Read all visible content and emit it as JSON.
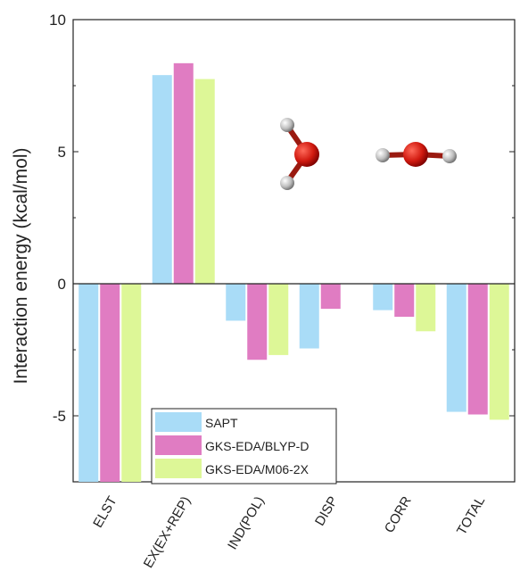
{
  "chart_data": {
    "type": "bar",
    "title": "",
    "xlabel": "",
    "ylabel": "Interaction energy (kcal/mol)",
    "ylim": [
      -7.5,
      10
    ],
    "yticks": [
      -5,
      0,
      5,
      10
    ],
    "ytick_labels": [
      "-5",
      "0",
      "5",
      "10"
    ],
    "categories": [
      "ELST",
      "EX(EX+REP)",
      "IND(POL)",
      "DISP",
      "CORR",
      "TOTAL"
    ],
    "series": [
      {
        "name": "SAPT",
        "color": "#a9dcf7",
        "values": [
          -7.5,
          7.9,
          -1.4,
          -2.45,
          -1.0,
          -4.85
        ]
      },
      {
        "name": "GKS-EDA/BLYP-D",
        "color": "#e07cc2",
        "values": [
          -7.5,
          8.35,
          -2.88,
          -0.95,
          -1.25,
          -4.95
        ]
      },
      {
        "name": "GKS-EDA/M06-2X",
        "color": "#ddf797",
        "values": [
          -7.5,
          7.75,
          -2.7,
          null,
          -1.8,
          -5.15
        ]
      }
    ],
    "legend": {
      "position": "bottom-left"
    },
    "grid": false,
    "inset": "water-dimer-molecule-illustration"
  }
}
